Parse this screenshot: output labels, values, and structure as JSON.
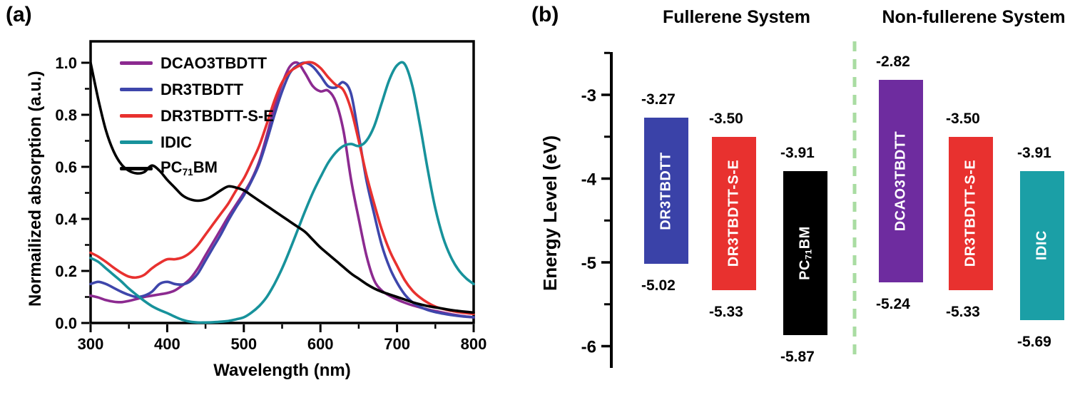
{
  "figure": {
    "panel_a_label": "(a)",
    "panel_b_label": "(b)"
  },
  "chart_data": [
    {
      "id": "absorption-spectra",
      "type": "line",
      "xlabel": "Wavelength (nm)",
      "ylabel": "Normailized absorption (a.u.)",
      "xlim": [
        300,
        800
      ],
      "ylim": [
        0.0,
        1.08
      ],
      "grid": false,
      "legend_position": "top-left",
      "x_ticks": [
        300,
        400,
        500,
        600,
        700,
        800
      ],
      "x_tick_labels": [
        "300",
        "400",
        "500",
        "600",
        "700",
        "800"
      ],
      "x_minor_ticks": [
        350,
        450,
        550,
        650,
        750
      ],
      "y_ticks": [
        0.0,
        0.2,
        0.4,
        0.6,
        0.8,
        1.0
      ],
      "y_tick_labels": [
        "0.0",
        "0.2",
        "0.4",
        "0.6",
        "0.8",
        "1.0"
      ],
      "y_minor_ticks": [
        0.1,
        0.3,
        0.5,
        0.7,
        0.9
      ],
      "x": [
        300,
        310,
        320,
        330,
        340,
        350,
        360,
        370,
        380,
        390,
        400,
        410,
        420,
        430,
        440,
        450,
        460,
        470,
        480,
        490,
        500,
        510,
        520,
        530,
        540,
        550,
        560,
        570,
        580,
        590,
        600,
        610,
        620,
        630,
        640,
        650,
        660,
        670,
        680,
        690,
        700,
        710,
        720,
        730,
        740,
        750,
        760,
        770,
        780,
        790,
        800
      ],
      "series": [
        {
          "name": "DCAO3TBDTT",
          "color": "#8C2A90",
          "values": [
            0.105,
            0.098,
            0.088,
            0.082,
            0.08,
            0.085,
            0.092,
            0.1,
            0.105,
            0.11,
            0.115,
            0.125,
            0.145,
            0.17,
            0.21,
            0.26,
            0.31,
            0.36,
            0.41,
            0.455,
            0.5,
            0.55,
            0.62,
            0.72,
            0.83,
            0.92,
            0.985,
            1.0,
            0.96,
            0.91,
            0.89,
            0.893,
            0.85,
            0.74,
            0.55,
            0.4,
            0.26,
            0.165,
            0.125,
            0.105,
            0.09,
            0.078,
            0.068,
            0.06,
            0.052,
            0.046,
            0.04,
            0.034,
            0.029,
            0.025,
            0.022
          ]
        },
        {
          "name": "DR3TBDTT",
          "color": "#3E46AB",
          "values": [
            0.15,
            0.158,
            0.15,
            0.135,
            0.12,
            0.108,
            0.1,
            0.105,
            0.12,
            0.15,
            0.158,
            0.15,
            0.148,
            0.16,
            0.19,
            0.24,
            0.29,
            0.34,
            0.395,
            0.445,
            0.49,
            0.545,
            0.61,
            0.7,
            0.8,
            0.89,
            0.96,
            0.99,
            1.0,
            0.985,
            0.95,
            0.91,
            0.905,
            0.925,
            0.88,
            0.72,
            0.55,
            0.42,
            0.3,
            0.215,
            0.155,
            0.11,
            0.08,
            0.062,
            0.05,
            0.042,
            0.036,
            0.031,
            0.027,
            0.024,
            0.022
          ]
        },
        {
          "name": "DR3TBDTT-S-E",
          "color": "#E8312F",
          "values": [
            0.27,
            0.255,
            0.235,
            0.213,
            0.193,
            0.178,
            0.175,
            0.185,
            0.21,
            0.23,
            0.245,
            0.245,
            0.252,
            0.27,
            0.3,
            0.34,
            0.38,
            0.42,
            0.46,
            0.51,
            0.555,
            0.615,
            0.68,
            0.765,
            0.855,
            0.925,
            0.965,
            0.985,
            1.0,
            1.0,
            0.98,
            0.945,
            0.915,
            0.895,
            0.82,
            0.7,
            0.57,
            0.46,
            0.36,
            0.28,
            0.22,
            0.165,
            0.125,
            0.098,
            0.078,
            0.063,
            0.054,
            0.047,
            0.042,
            0.038,
            0.035
          ]
        },
        {
          "name": "IDIC",
          "color": "#17929B",
          "values": [
            0.25,
            0.235,
            0.21,
            0.185,
            0.16,
            0.132,
            0.108,
            0.085,
            0.065,
            0.05,
            0.038,
            0.024,
            0.012,
            0.005,
            0.002,
            0.002,
            0.003,
            0.005,
            0.008,
            0.014,
            0.022,
            0.04,
            0.065,
            0.1,
            0.15,
            0.21,
            0.28,
            0.355,
            0.43,
            0.5,
            0.56,
            0.615,
            0.655,
            0.68,
            0.688,
            0.68,
            0.7,
            0.755,
            0.845,
            0.935,
            0.99,
            0.995,
            0.91,
            0.76,
            0.59,
            0.44,
            0.33,
            0.255,
            0.205,
            0.172,
            0.15
          ]
        },
        {
          "name": "PC{71}BM",
          "color": "#000000",
          "values": [
            1.0,
            0.86,
            0.74,
            0.66,
            0.61,
            0.585,
            0.575,
            0.58,
            0.605,
            0.585,
            0.55,
            0.52,
            0.49,
            0.475,
            0.47,
            0.475,
            0.49,
            0.51,
            0.525,
            0.52,
            0.51,
            0.49,
            0.47,
            0.45,
            0.43,
            0.41,
            0.39,
            0.37,
            0.35,
            0.32,
            0.29,
            0.265,
            0.24,
            0.215,
            0.19,
            0.17,
            0.15,
            0.133,
            0.12,
            0.11,
            0.1,
            0.09,
            0.08,
            0.072,
            0.065,
            0.06,
            0.055,
            0.05,
            0.046,
            0.043,
            0.04
          ]
        }
      ]
    },
    {
      "id": "energy-level-diagram",
      "type": "bar",
      "variant": "energy-levels",
      "ylabel": "Energy Level (eV)",
      "ylim": [
        -6.3,
        -2.5
      ],
      "y_ticks": [
        -3,
        -4,
        -5,
        -6
      ],
      "y_tick_labels": [
        "-3",
        "-4",
        "-5",
        "-6"
      ],
      "y_minor_ticks": [
        -2.5,
        -3.5,
        -4.5,
        -5.5
      ],
      "separator_color": "#A9DCA2",
      "groups": [
        {
          "title": "Fullerene  System",
          "bars": [
            {
              "name": "DR3TBDTT",
              "color": "#3A42A8",
              "lumo": "-3.27",
              "homo": "-5.02"
            },
            {
              "name": "DR3TBDTT-S-E",
              "color": "#E8312F",
              "lumo": "-3.50",
              "homo": "-5.33"
            },
            {
              "name": "PC{71}BM",
              "color": "#000000",
              "lumo": "-3.91",
              "homo": "-5.87"
            }
          ]
        },
        {
          "title": "Non-fullerene System",
          "bars": [
            {
              "name": "DCAO3TBDTT",
              "color": "#6E2C9F",
              "lumo": "-2.82",
              "homo": "-5.24"
            },
            {
              "name": "DR3TBDTT-S-E",
              "color": "#E8312F",
              "lumo": "-3.50",
              "homo": "-5.33"
            },
            {
              "name": "IDIC",
              "color": "#1B9FA6",
              "lumo": "-3.91",
              "homo": "-5.69"
            }
          ]
        }
      ]
    }
  ]
}
